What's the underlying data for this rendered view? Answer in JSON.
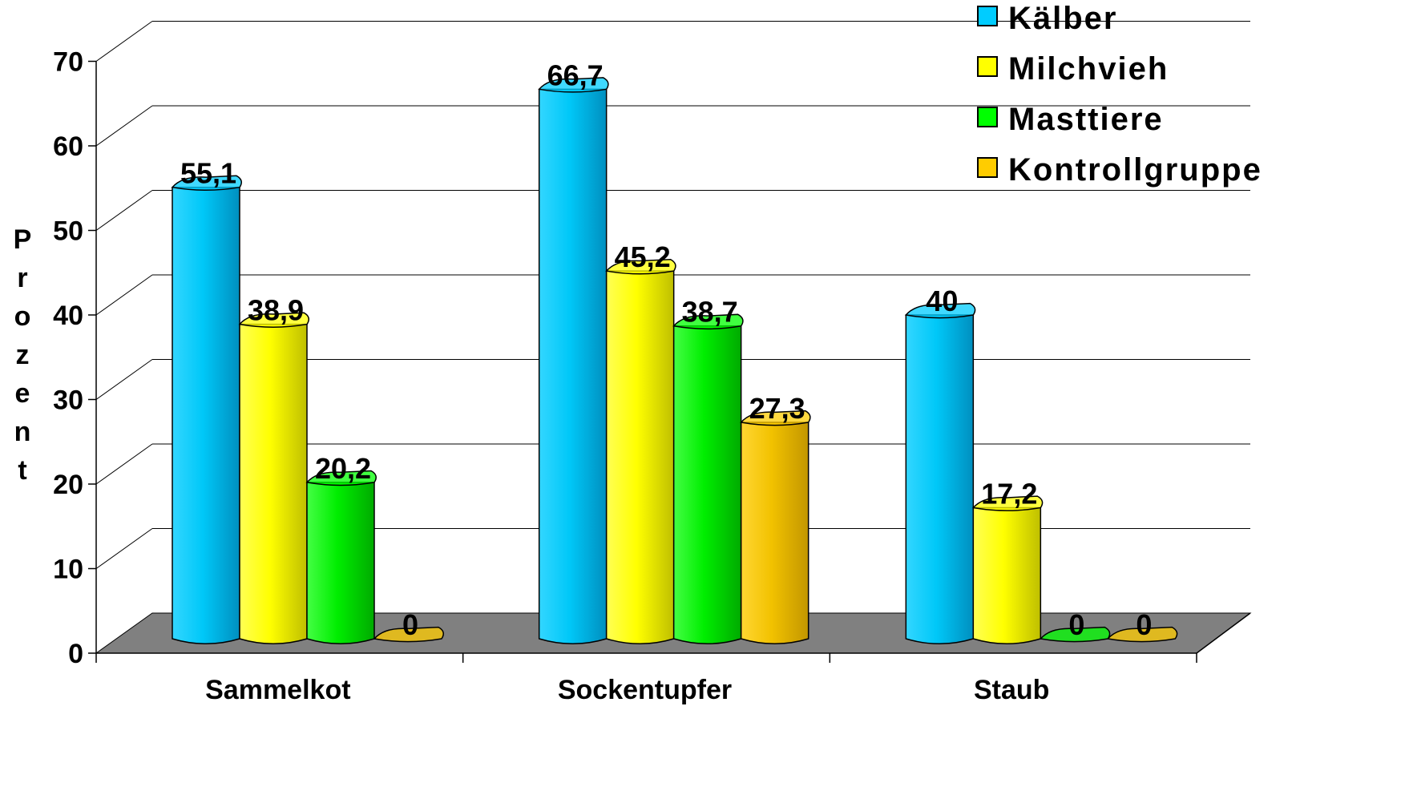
{
  "chart_data": {
    "type": "bar",
    "categories": [
      "Sammelkot",
      "Sockentupfer",
      "Staub"
    ],
    "series": [
      {
        "name": "Kälber",
        "values": [
          55.1,
          66.7,
          40
        ],
        "labels": [
          "55,1",
          "66,7",
          "40"
        ],
        "color": "#00CCFF"
      },
      {
        "name": "Milchvieh",
        "values": [
          38.9,
          45.2,
          17.2
        ],
        "labels": [
          "38,9",
          "45,2",
          "17,2"
        ],
        "color": "#FFFF00"
      },
      {
        "name": "Masttiere",
        "values": [
          20.2,
          38.7,
          0
        ],
        "labels": [
          "20,2",
          "38,7",
          "0"
        ],
        "color": "#00FF00"
      },
      {
        "name": "Kontrollgruppe",
        "values": [
          0,
          27.3,
          0
        ],
        "labels": [
          "0",
          "27,3",
          "0"
        ],
        "color": "#FFCC00"
      }
    ],
    "ylabel": "Prozent",
    "ylim": [
      0,
      70
    ],
    "yticks": [
      "0",
      "10",
      "20",
      "30",
      "40",
      "50",
      "60",
      "70"
    ],
    "grid": true,
    "legend": "top-right",
    "floor_color": "#808080"
  }
}
